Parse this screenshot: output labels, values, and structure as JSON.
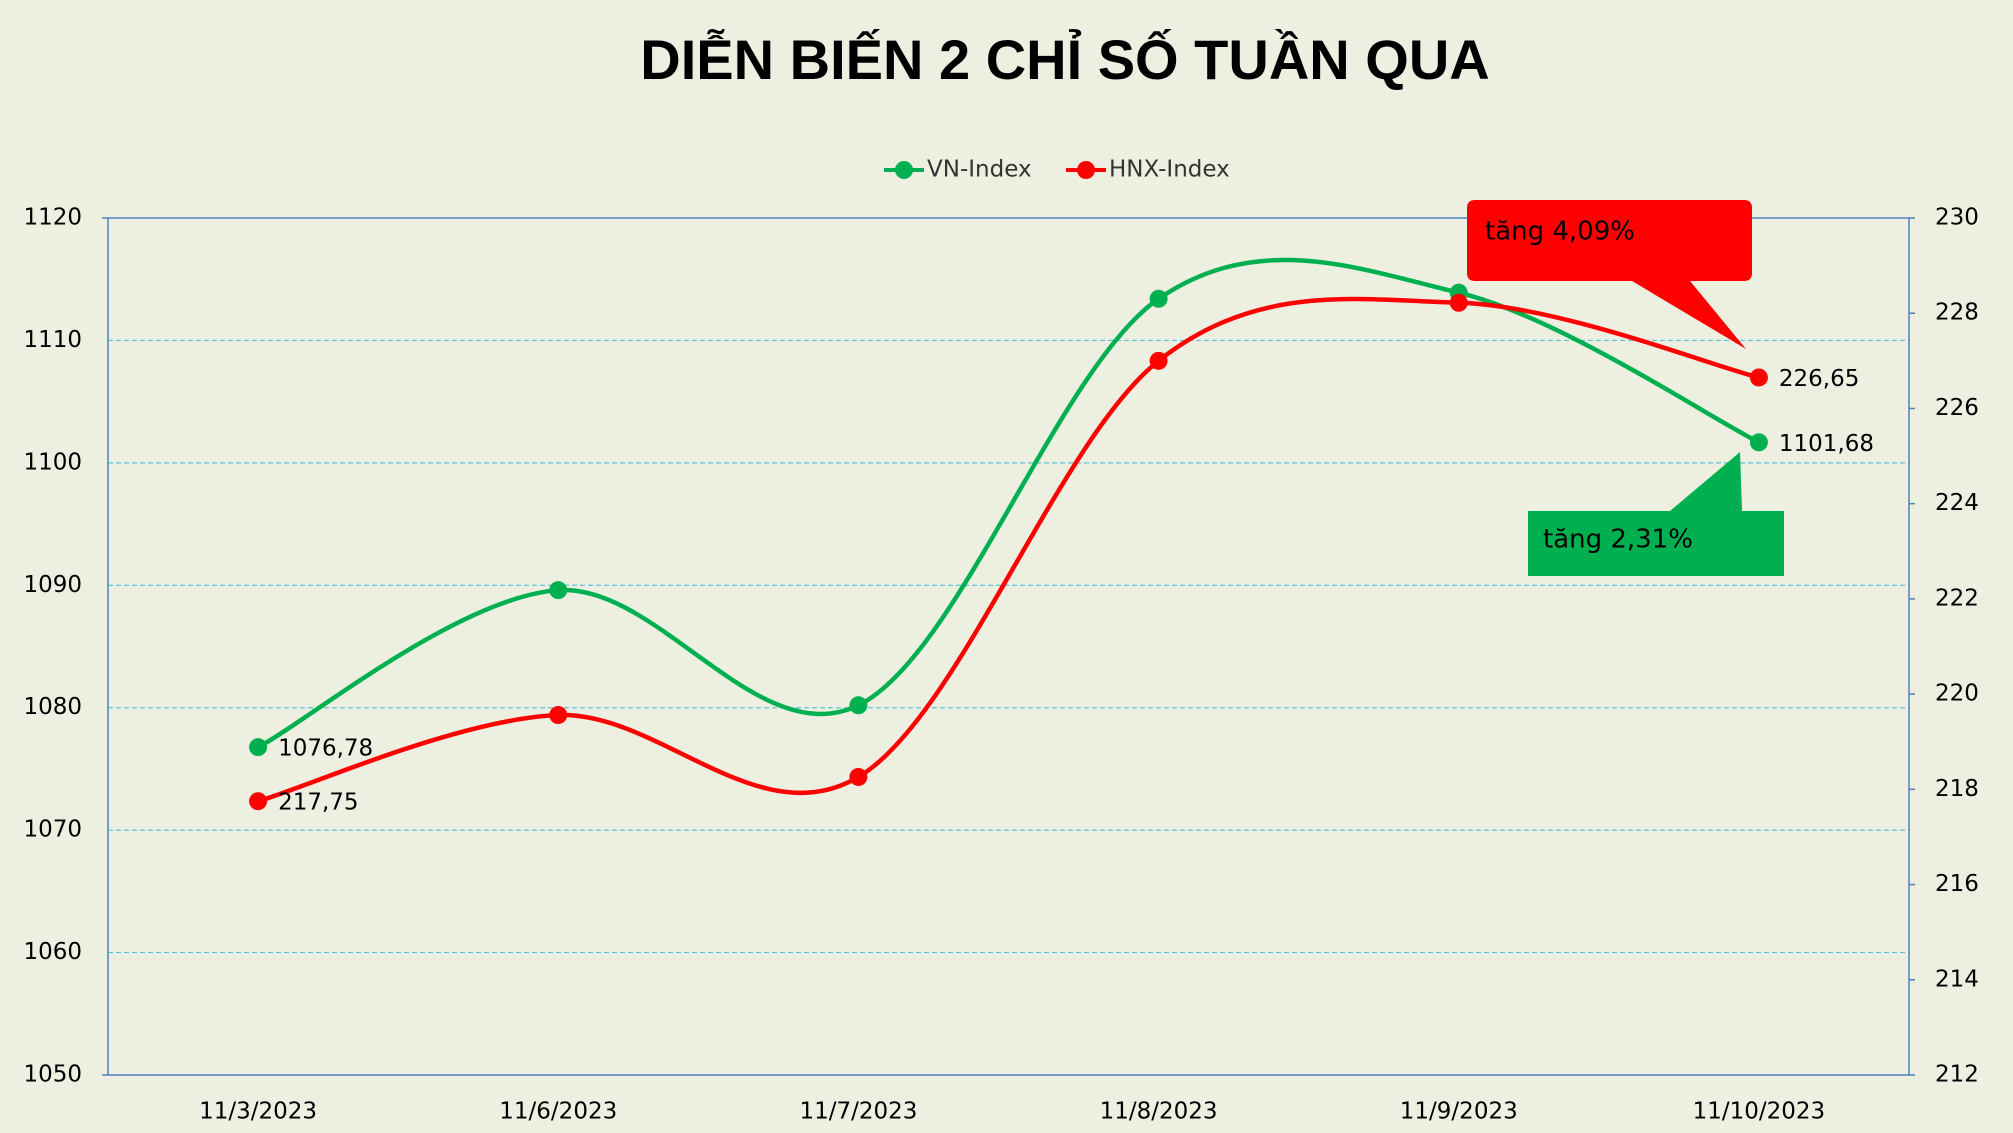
{
  "chart_data": {
    "type": "line",
    "title": "DIỄN BIẾN 2 CHỈ SỐ TUẦN QUA",
    "categories": [
      "11/3/2023",
      "11/6/2023",
      "11/7/2023",
      "11/8/2023",
      "11/9/2023",
      "11/10/2023"
    ],
    "series": [
      {
        "name": "VN-Index",
        "color": "#00b050",
        "values": [
          1076.78,
          1089.6,
          1080.2,
          1113.4,
          1113.9,
          1101.68
        ],
        "value_labels": [
          "1076,78",
          null,
          null,
          null,
          null,
          "1101,68"
        ]
      },
      {
        "name": "HNX-Index",
        "color": "#ff0000",
        "axis": "y2",
        "values": [
          217.75,
          219.56,
          218.26,
          227.0,
          228.22,
          226.65
        ],
        "value_labels": [
          "217,75",
          null,
          null,
          null,
          null,
          "226,65"
        ]
      }
    ],
    "ylim": [
      1050,
      1120
    ],
    "yticks": [
      1050,
      1060,
      1070,
      1080,
      1090,
      1100,
      1110,
      1120
    ],
    "y2lim": [
      212,
      230
    ],
    "y2ticks": [
      212,
      214,
      216,
      218,
      220,
      222,
      224,
      226,
      228,
      230
    ],
    "grid": true,
    "smooth": true,
    "legend": "top",
    "annotations": [
      {
        "text": "tăng 4,09%",
        "color": "#ff0000",
        "series": 1
      },
      {
        "text": "tăng 2,31%",
        "color": "#00b050",
        "series": 0
      }
    ]
  }
}
